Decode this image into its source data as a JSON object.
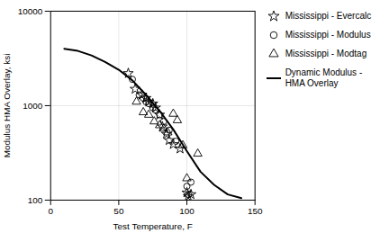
{
  "chart_data": {
    "type": "scatter",
    "xlabel": "Test Temperature, F",
    "ylabel": "Modulus HMA Overlay, ksi",
    "xlim": [
      0,
      150
    ],
    "ylim": [
      100,
      10000
    ],
    "xticks": [
      0,
      50,
      100,
      150
    ],
    "yticks": [
      100,
      1000,
      10000
    ],
    "log": "y",
    "grid": true,
    "legend": "right",
    "series": [
      {
        "name": "Mississippi - Evercalc",
        "type": "scatter",
        "marker": "star",
        "color": "#000000",
        "x": [
          57,
          62,
          67,
          70,
          72,
          75,
          77,
          80,
          82,
          85,
          87,
          90,
          95,
          100,
          101,
          103
        ],
        "values": [
          2200,
          1500,
          1300,
          1200,
          1100,
          1050,
          950,
          800,
          600,
          500,
          430,
          390,
          350,
          120,
          110,
          115
        ]
      },
      {
        "name": "Mississippi - Modulus",
        "type": "scatter",
        "marker": "circle",
        "color": "#000000",
        "x": [
          60,
          65,
          68,
          70,
          72,
          75,
          77,
          80,
          83,
          87,
          92,
          100,
          101,
          103
        ],
        "values": [
          1900,
          1300,
          1200,
          1100,
          1050,
          950,
          900,
          800,
          680,
          550,
          420,
          140,
          115,
          155
        ]
      },
      {
        "name": "Mississippi - Modtag",
        "type": "scatter",
        "marker": "triangle",
        "color": "#000000",
        "x": [
          63,
          68,
          72,
          76,
          80,
          83,
          86,
          90,
          93,
          97,
          100,
          108
        ],
        "values": [
          1100,
          850,
          800,
          680,
          620,
          570,
          520,
          820,
          700,
          380,
          170,
          310
        ]
      },
      {
        "name": "Dynamic Modulus -\nHMA Overlay",
        "type": "line",
        "line_style": "solid",
        "color": "#000000",
        "x": [
          10,
          20,
          30,
          40,
          50,
          60,
          70,
          80,
          90,
          100,
          110,
          120,
          130,
          140
        ],
        "values": [
          4000,
          3800,
          3400,
          2900,
          2400,
          1850,
          1300,
          880,
          560,
          330,
          200,
          145,
          115,
          105
        ]
      }
    ]
  }
}
